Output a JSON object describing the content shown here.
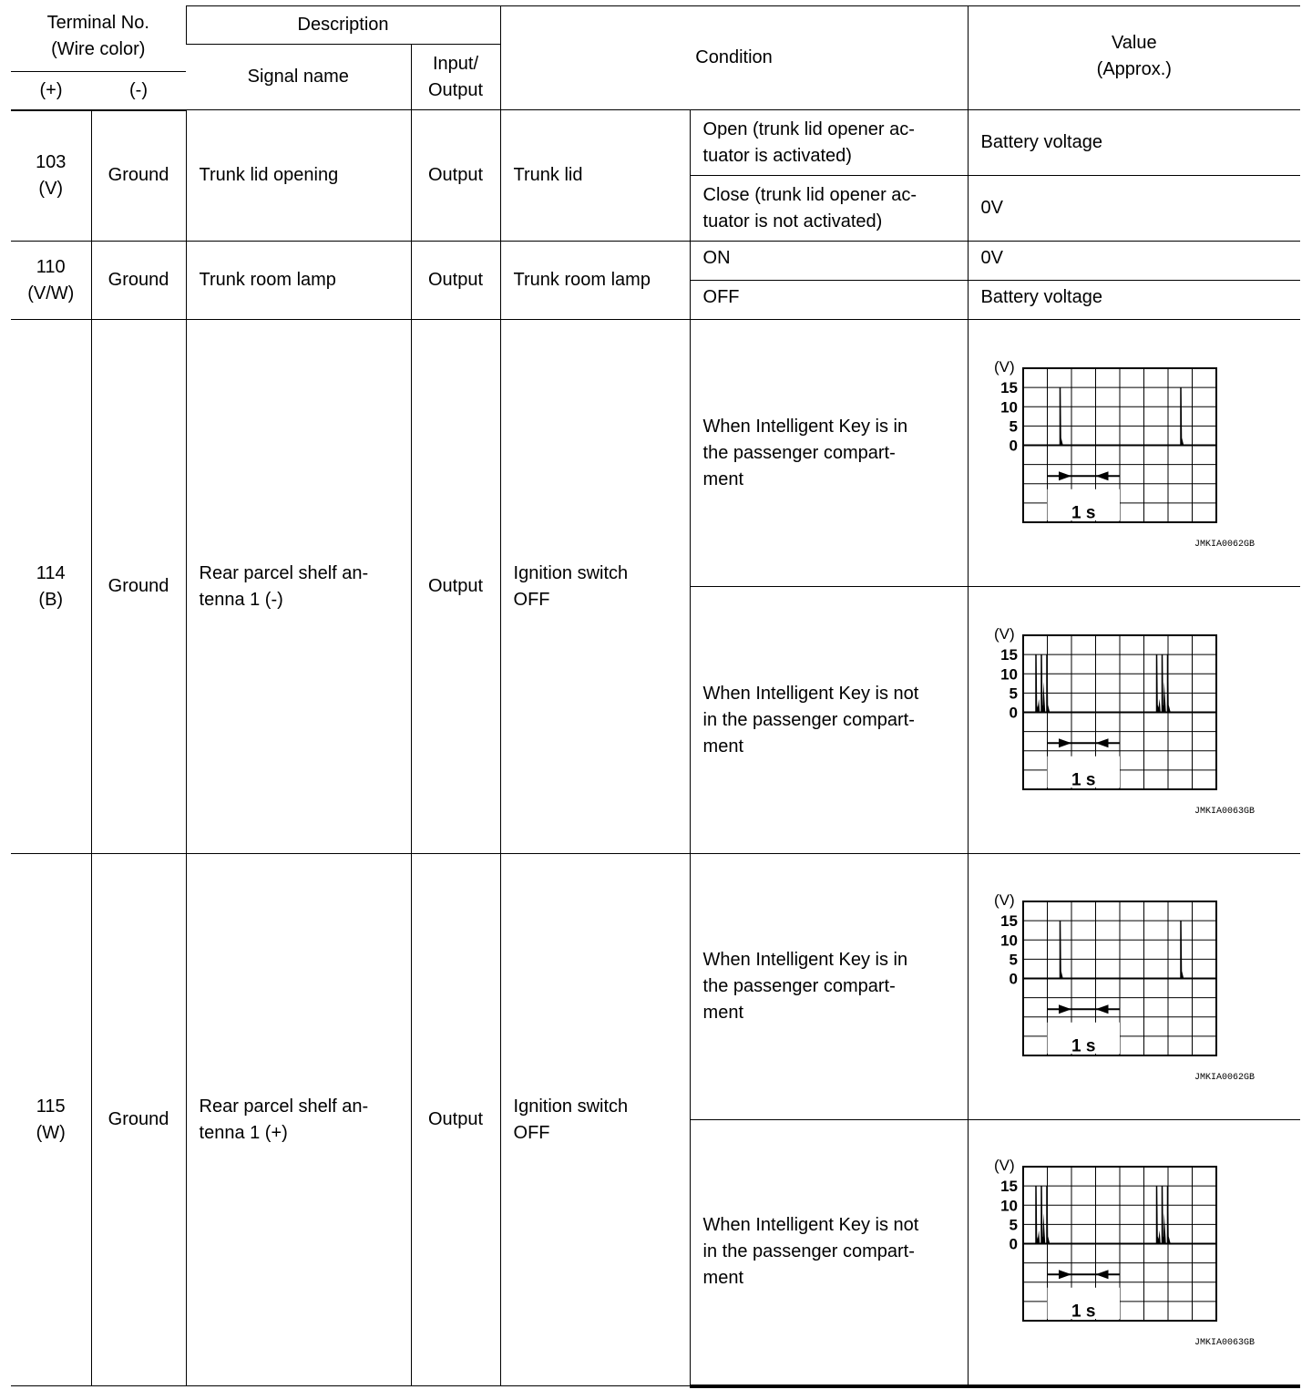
{
  "header": {
    "terminal_no": "Terminal No.",
    "wire_color": "(Wire color)",
    "plus": "(+)",
    "minus": "(-)",
    "description": "Description",
    "signal_name": "Signal name",
    "io1": "Input/",
    "io2": "Output",
    "condition": "Condition",
    "value1": "Value",
    "value2": "(Approx.)"
  },
  "rows": [
    {
      "term": "103",
      "color": "(V)",
      "minus": "Ground",
      "signal": "Trunk lid opening",
      "io": "Output",
      "cond": "Trunk lid",
      "sub": [
        {
          "cond1": "Open (trunk lid opener ac-",
          "cond2": "tuator is activated)",
          "value": "Battery voltage"
        },
        {
          "cond1": "Close (trunk lid opener ac-",
          "cond2": "tuator is not activated)",
          "value": "0V"
        }
      ]
    },
    {
      "term": "110",
      "color": "(V/W)",
      "minus": "Ground",
      "signal": "Trunk room lamp",
      "io": "Output",
      "cond": "Trunk room lamp",
      "sub": [
        {
          "cond1": "ON",
          "value": "0V"
        },
        {
          "cond1": "OFF",
          "value": "Battery voltage"
        }
      ]
    },
    {
      "term": "114",
      "color": "(B)",
      "minus": "Ground",
      "signal1": "Rear parcel shelf an-",
      "signal2": "tenna 1 (-)",
      "io": "Output",
      "cond1": "Ignition switch",
      "cond2": "OFF",
      "sub": [
        {
          "l1": "When Intelligent Key is in",
          "l2": "the passenger compart-",
          "l3": "ment",
          "wave": "single",
          "code": "JMKIA0062GB"
        },
        {
          "l1": "When Intelligent Key is not",
          "l2": "in the passenger compart-",
          "l3": "ment",
          "wave": "burst",
          "code": "JMKIA0063GB"
        }
      ]
    },
    {
      "term": "115",
      "color": "(W)",
      "minus": "Ground",
      "signal1": "Rear parcel shelf an-",
      "signal2": "tenna 1 (+)",
      "io": "Output",
      "cond1": "Ignition switch",
      "cond2": "OFF",
      "sub": [
        {
          "l1": "When Intelligent Key is in",
          "l2": "the passenger compart-",
          "l3": "ment",
          "wave": "single",
          "code": "JMKIA0062GB"
        },
        {
          "l1": "When Intelligent Key is not",
          "l2": "in the passenger compart-",
          "l3": "ment",
          "wave": "burst",
          "code": "JMKIA0063GB"
        }
      ]
    }
  ],
  "waveform": {
    "unit": "(V)",
    "yticks": [
      "15",
      "10",
      "5",
      "0"
    ],
    "time_label": "1 s"
  }
}
